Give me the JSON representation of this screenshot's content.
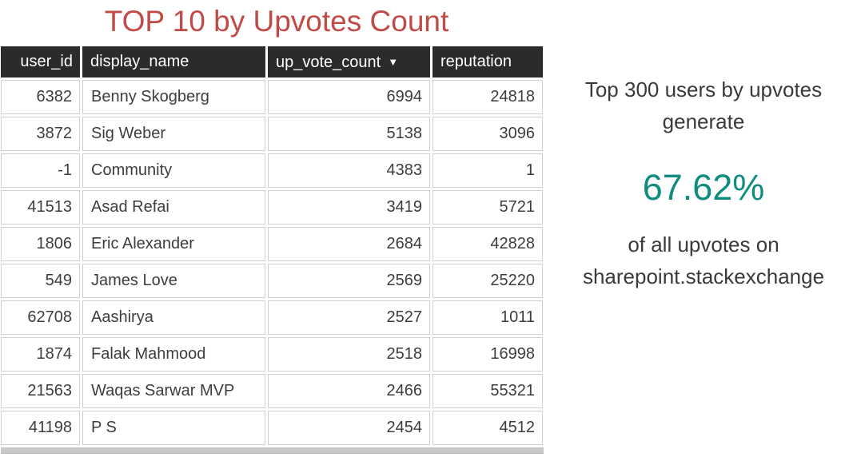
{
  "chart_data": {
    "type": "table",
    "title": "TOP 10 by Upvotes Count",
    "columns": [
      "user_id",
      "display_name",
      "up_vote_count",
      "reputation"
    ],
    "sort": {
      "column": "up_vote_count",
      "direction": "desc"
    },
    "sort_icon": "▼",
    "rows": [
      [
        6382,
        "Benny Skogberg",
        6994,
        24818
      ],
      [
        3872,
        "Sig Weber",
        5138,
        3096
      ],
      [
        -1,
        "Community",
        4383,
        1
      ],
      [
        41513,
        "Asad Refai",
        3419,
        5721
      ],
      [
        1806,
        "Eric Alexander",
        2684,
        42828
      ],
      [
        549,
        "James Love",
        2569,
        25220
      ],
      [
        62708,
        "Aashirya",
        2527,
        1011
      ],
      [
        1874,
        "Falak Mahmood",
        2518,
        16998
      ],
      [
        21563,
        "Waqas Sarwar MVP",
        2466,
        55321
      ],
      [
        41198,
        "P S",
        2454,
        4512
      ]
    ],
    "kpi": {
      "value": 67.62,
      "unit": "%",
      "text_before": "Top 300 users by upvotes generate",
      "text_after": "of all upvotes on sharepoint.stackexchange"
    }
  },
  "callout": {
    "intro_line1": "Top 300 users by upvotes",
    "intro_line2": "generate",
    "value": "67.62%",
    "outro_line1": "of all upvotes on",
    "outro_line2": "sharepoint.stackexchange"
  },
  "colors": {
    "title_red": "#C04A45",
    "header_bg": "#2B2B2B",
    "header_text": "#FFFFFF",
    "cell_text": "#3F3D3B",
    "cell_border": "#D1D0CF",
    "kpi_teal": "#0E8C7D",
    "callout_text": "#3B3A39"
  }
}
